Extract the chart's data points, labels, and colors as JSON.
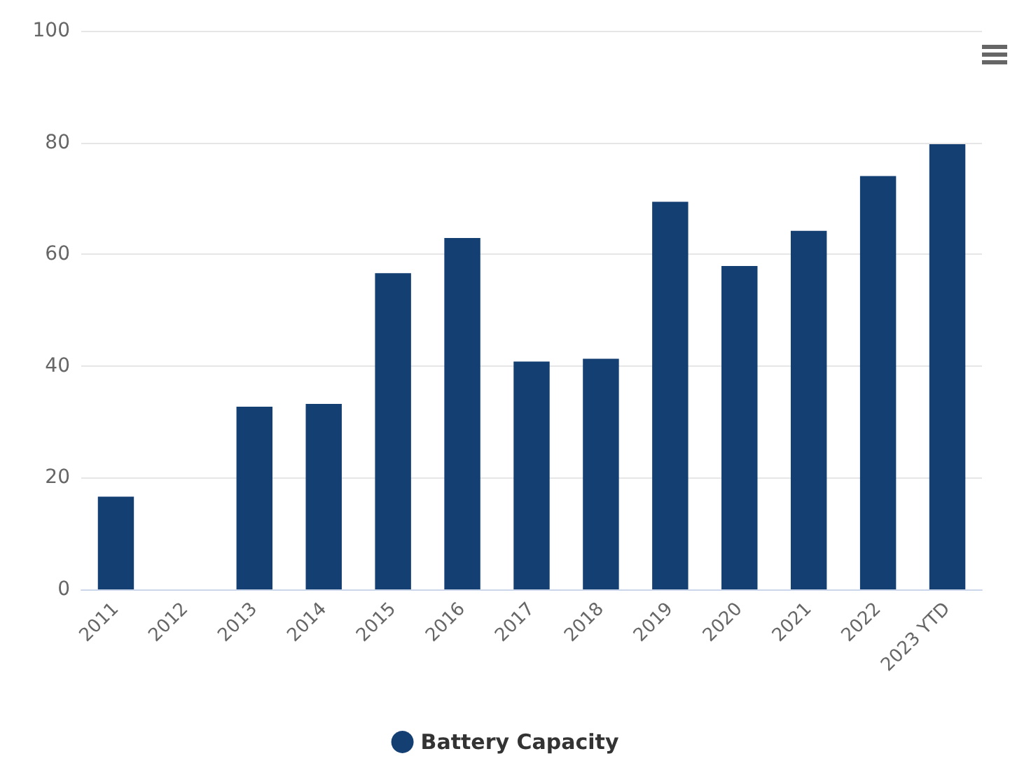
{
  "chart_data": {
    "type": "bar",
    "categories": [
      "2011",
      "2012",
      "2013",
      "2014",
      "2015",
      "2016",
      "2017",
      "2018",
      "2019",
      "2020",
      "2021",
      "2022",
      "2023 YTD"
    ],
    "series": [
      {
        "name": "Battery Capacity",
        "color": "#143f73",
        "values": [
          16.6,
          0,
          32.7,
          33.2,
          56.6,
          62.9,
          40.8,
          41.3,
          69.4,
          57.9,
          64.2,
          74,
          79.7
        ]
      }
    ],
    "ylim": [
      0,
      100
    ],
    "yticks": [
      0,
      20,
      40,
      60,
      80,
      100
    ],
    "grid": "y",
    "legend": "bottom"
  }
}
